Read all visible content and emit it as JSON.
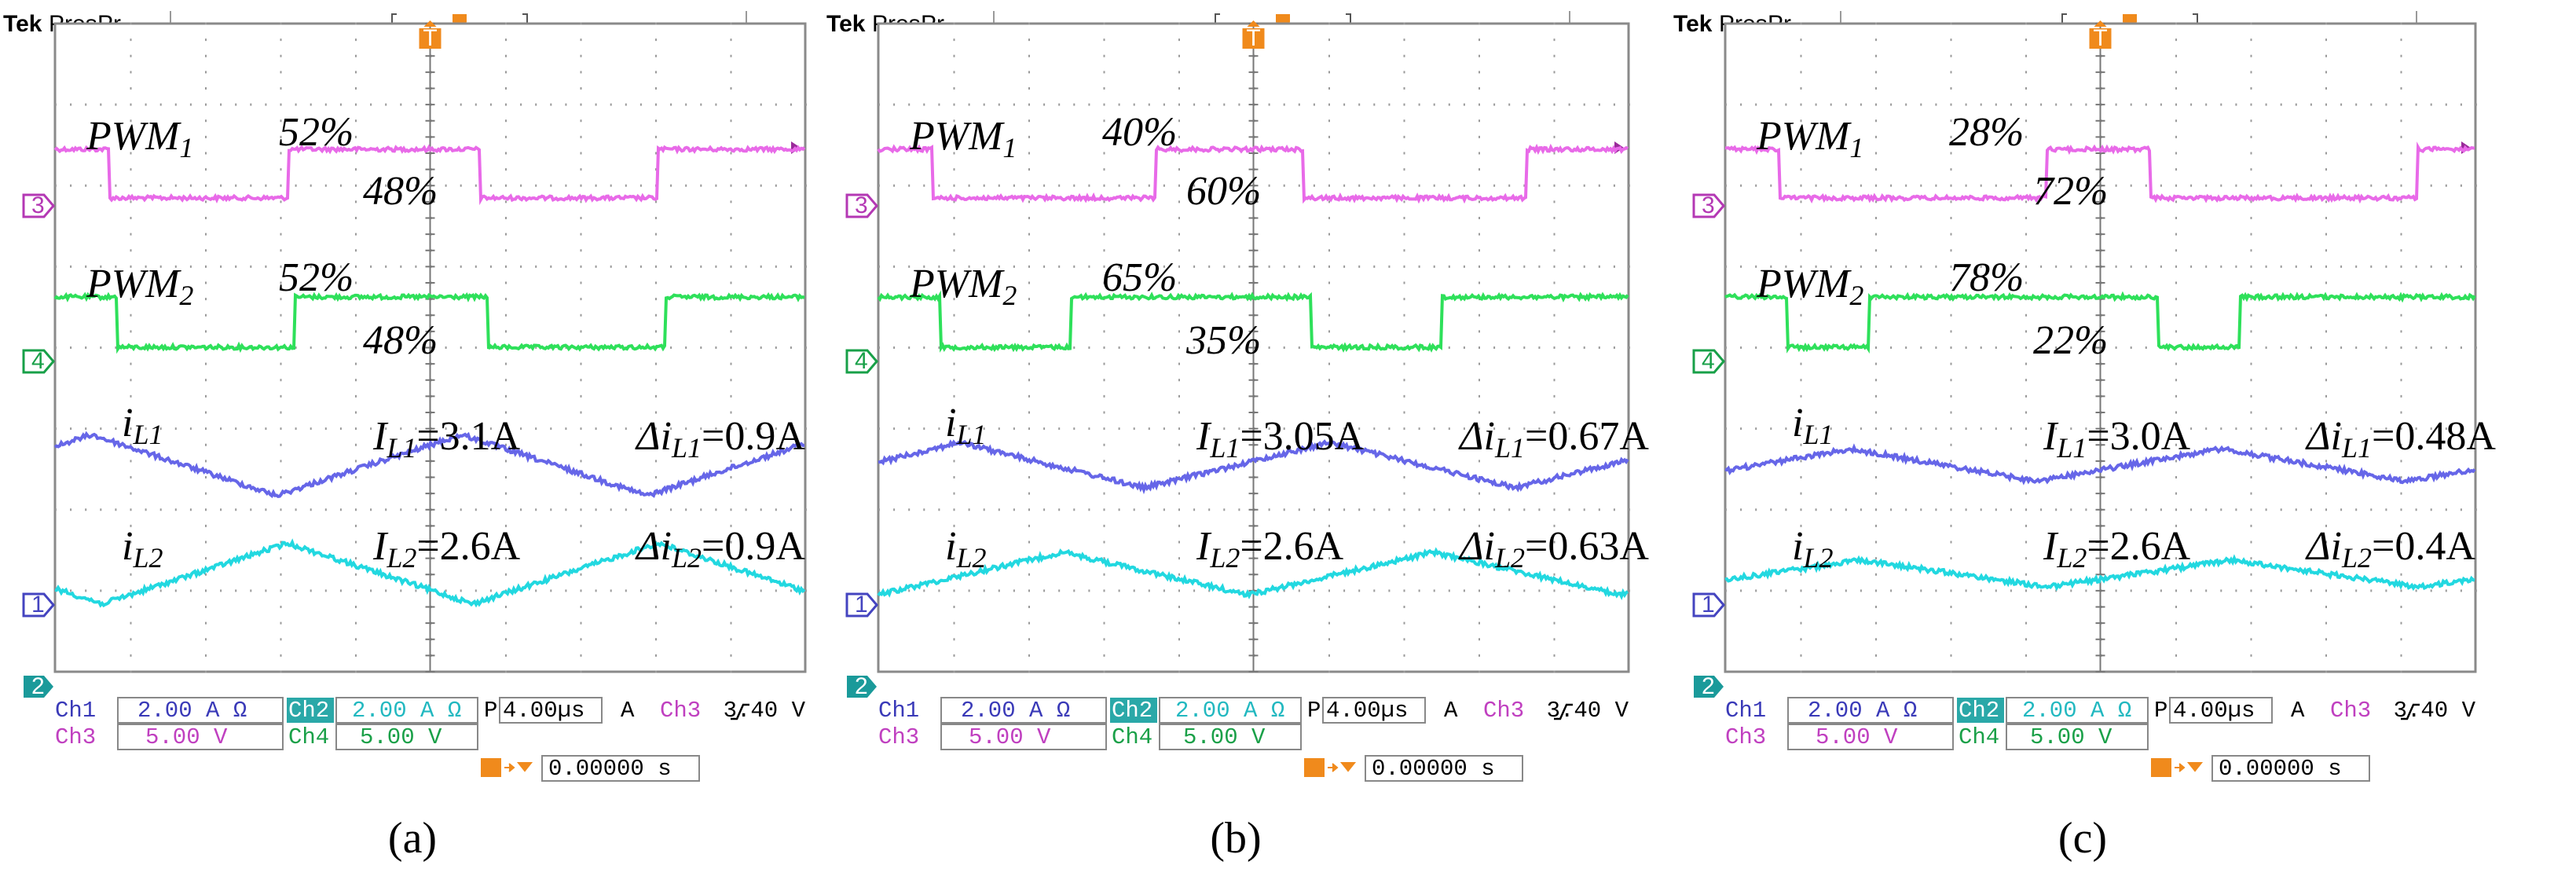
{
  "colors": {
    "ch1": "#6666e8",
    "ch2": "#22d8e0",
    "ch3": "#e86ae8",
    "ch4": "#2ee05a",
    "trigger": "#f08a1c",
    "grid": "#9a9a9a",
    "ch2_box": "#2aa8a8"
  },
  "panels": [
    {
      "caption": "(a)",
      "header": {
        "brand": "Tek",
        "mode": "Pres",
        "mode2": "Pr"
      },
      "readout": {
        "ch1": "Ch1",
        "ch1_val": "2.00 A Ω",
        "ch2": "Ch2",
        "ch2_val": "2.00 A Ω",
        "ch3": "Ch3",
        "ch3_val": "5.00 V",
        "ch4": "Ch4",
        "ch4_val": "5.00 V",
        "timebase_prefix": "P",
        "timebase": "4.00µs",
        "trig_prefix": "A",
        "trig_ch": "Ch3",
        "trig_level": "3.40 V",
        "trig_pos": "0.00000 s"
      },
      "markers": {
        "ch3": "3",
        "ch4": "4",
        "ch1": "1",
        "ch2": "2",
        "trigger": "T"
      },
      "labels": {
        "pwm1": "PWM",
        "pwm1_sub": "1",
        "pwm1_high": "52%",
        "pwm1_low": "48%",
        "pwm2": "PWM",
        "pwm2_sub": "2",
        "pwm2_high": "52%",
        "pwm2_low": "48%",
        "il1": "i",
        "il1_sub": "L1",
        "IL1": "I",
        "IL1_sub": "L1",
        "IL1_val": "=3.1A",
        "dil1": "Δi",
        "dil1_sub": "L1",
        "dil1_val": "=0.9A",
        "il2": "i",
        "il2_sub": "L2",
        "IL2": "I",
        "IL2_sub": "L2",
        "IL2_val": "=2.6A",
        "dil2": "Δi",
        "dil2_sub": "L2",
        "dil2_val": "=0.9A"
      },
      "chart_data": {
        "type": "line",
        "time_per_div_us": 4.0,
        "pwm1_duty": 0.52,
        "pwm2_duty": 0.52,
        "IL1_A": 3.1,
        "dIL1_A": 0.9,
        "IL2_A": 2.6,
        "dIL2_A": 0.9
      }
    },
    {
      "caption": "(b)",
      "header": {
        "brand": "Tek",
        "mode": "Pres",
        "mode2": "Pr"
      },
      "readout": {
        "ch1": "Ch1",
        "ch1_val": "2.00 A Ω",
        "ch2": "Ch2",
        "ch2_val": "2.00 A Ω",
        "ch3": "Ch3",
        "ch3_val": "5.00 V",
        "ch4": "Ch4",
        "ch4_val": "5.00 V",
        "timebase_prefix": "P",
        "timebase": "4.00µs",
        "trig_prefix": "A",
        "trig_ch": "Ch3",
        "trig_level": "3.40 V",
        "trig_pos": "0.00000 s"
      },
      "markers": {
        "ch3": "3",
        "ch4": "4",
        "ch1": "1",
        "ch2": "2",
        "trigger": "T"
      },
      "labels": {
        "pwm1": "PWM",
        "pwm1_sub": "1",
        "pwm1_high": "40%",
        "pwm1_low": "60%",
        "pwm2": "PWM",
        "pwm2_sub": "2",
        "pwm2_high": "65%",
        "pwm2_low": "35%",
        "il1": "i",
        "il1_sub": "L1",
        "IL1": "I",
        "IL1_sub": "L1",
        "IL1_val": "=3.05A",
        "dil1": "Δi",
        "dil1_sub": "L1",
        "dil1_val": "=0.67A",
        "il2": "i",
        "il2_sub": "L2",
        "IL2": "I",
        "IL2_sub": "L2",
        "IL2_val": "=2.6A",
        "dil2": "Δi",
        "dil2_sub": "L2",
        "dil2_val": "=0.63A"
      },
      "chart_data": {
        "type": "line",
        "time_per_div_us": 4.0,
        "pwm1_duty": 0.4,
        "pwm2_duty": 0.65,
        "IL1_A": 3.05,
        "dIL1_A": 0.67,
        "IL2_A": 2.6,
        "dIL2_A": 0.63
      }
    },
    {
      "caption": "(c)",
      "header": {
        "brand": "Tek",
        "mode": "Pres",
        "mode2": "Pr"
      },
      "readout": {
        "ch1": "Ch1",
        "ch1_val": "2.00 A Ω",
        "ch2": "Ch2",
        "ch2_val": "2.00 A Ω",
        "ch3": "Ch3",
        "ch3_val": "5.00 V",
        "ch4": "Ch4",
        "ch4_val": "5.00 V",
        "timebase_prefix": "P",
        "timebase": "4.00µs",
        "trig_prefix": "A",
        "trig_ch": "Ch3",
        "trig_level": "3.40 V",
        "trig_pos": "0.00000 s"
      },
      "markers": {
        "ch3": "3",
        "ch4": "4",
        "ch1": "1",
        "ch2": "2",
        "trigger": "T"
      },
      "labels": {
        "pwm1": "PWM",
        "pwm1_sub": "1",
        "pwm1_high": "28%",
        "pwm1_low": "72%",
        "pwm2": "PWM",
        "pwm2_sub": "2",
        "pwm2_high": "78%",
        "pwm2_low": "22%",
        "il1": "i",
        "il1_sub": "L1",
        "IL1": "I",
        "IL1_sub": "L1",
        "IL1_val": "=3.0A",
        "dil1": "Δi",
        "dil1_sub": "L1",
        "dil1_val": "=0.48A",
        "il2": "i",
        "il2_sub": "L2",
        "IL2": "I",
        "IL2_sub": "L2",
        "IL2_val": "=2.6A",
        "dil2": "Δi",
        "dil2_sub": "L2",
        "dil2_val": "=0.4A"
      },
      "chart_data": {
        "type": "line",
        "time_per_div_us": 4.0,
        "pwm1_duty": 0.28,
        "pwm2_duty": 0.78,
        "IL1_A": 3.0,
        "dIL1_A": 0.48,
        "IL2_A": 2.6,
        "dIL2_A": 0.4
      }
    }
  ]
}
